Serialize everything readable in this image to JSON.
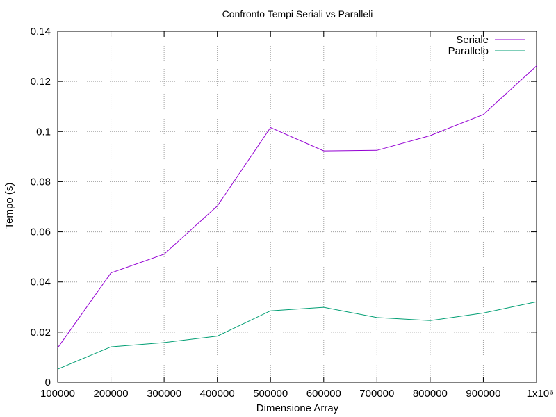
{
  "chart_data": {
    "type": "line",
    "title": "Confronto Tempi Seriali vs Paralleli",
    "xlabel": "Dimensione Array",
    "ylabel": "Tempo (s)",
    "xlim": [
      100000,
      1000000
    ],
    "ylim": [
      0,
      0.14
    ],
    "x_ticks": [
      100000,
      200000,
      300000,
      400000,
      500000,
      600000,
      700000,
      800000,
      900000,
      1000000
    ],
    "x_tick_labels": [
      "100000",
      "200000",
      "300000",
      "400000",
      "500000",
      "600000",
      "700000",
      "800000",
      "900000",
      "1x10⁶"
    ],
    "y_ticks": [
      0,
      0.02,
      0.04,
      0.06,
      0.08,
      0.1,
      0.12,
      0.14
    ],
    "y_tick_labels": [
      "0",
      "0.02",
      "0.04",
      "0.06",
      "0.08",
      "0.1",
      "0.12",
      "0.14"
    ],
    "grid": true,
    "legend_position": "top-right",
    "x": [
      100000,
      200000,
      300000,
      400000,
      500000,
      600000,
      700000,
      800000,
      900000,
      1000000
    ],
    "series": [
      {
        "name": "Seriale",
        "color": "#9400d3",
        "values": [
          0.0137,
          0.0436,
          0.0511,
          0.0703,
          0.1016,
          0.0923,
          0.0925,
          0.0984,
          0.1068,
          0.1262
        ]
      },
      {
        "name": "Parallelo",
        "color": "#009e73",
        "values": [
          0.0052,
          0.0141,
          0.0158,
          0.0184,
          0.0285,
          0.0299,
          0.0258,
          0.0246,
          0.0276,
          0.0321
        ]
      }
    ]
  }
}
